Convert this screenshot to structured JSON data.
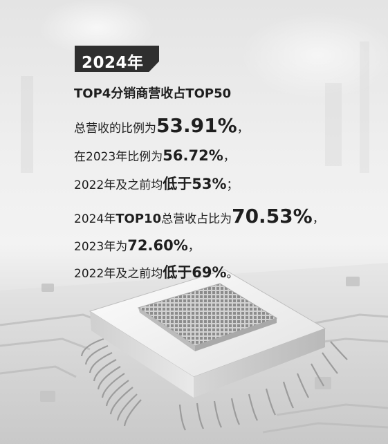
{
  "badge": {
    "year": "2024年"
  },
  "lines": [
    {
      "a": "TOP4分销商营收占TOP50"
    },
    {
      "a": "总营收的比例为",
      "b": "53.91%",
      "c": "，"
    },
    {
      "a": "在2023年比例为",
      "b": "56.72%",
      "c": "，"
    },
    {
      "a": "2022年及之前均",
      "b": "低于53%",
      "c": "；"
    },
    {
      "a": "2024年",
      "b": "TOP10",
      "c": "总营收占比为",
      "d": "70.53%",
      "e": "，"
    },
    {
      "a": "2023年为",
      "b": "72.60%",
      "c": "，"
    },
    {
      "a": "2022年及之前均",
      "b": "低于69%",
      "c": "。"
    }
  ],
  "colors": {
    "badge": "#2f2f2f",
    "text": "#1e1e1e"
  },
  "icon": "microchip-illustration"
}
